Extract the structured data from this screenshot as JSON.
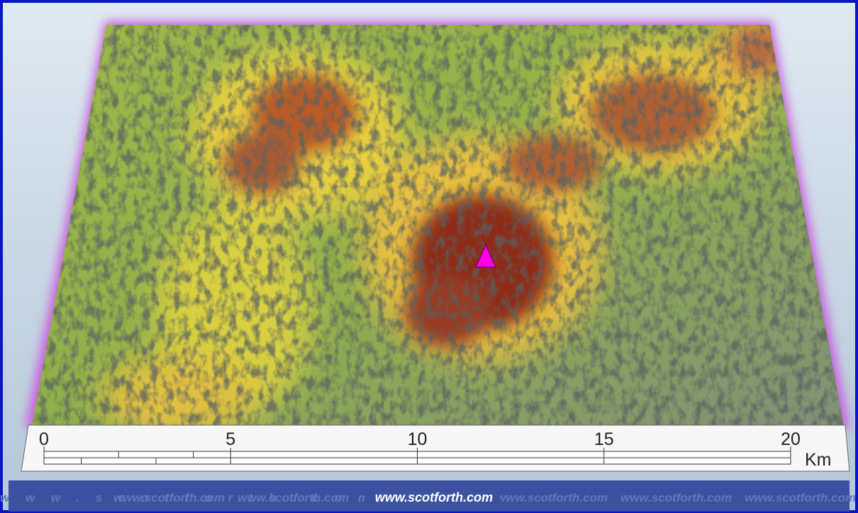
{
  "scale_bar": {
    "ticks": [
      0,
      5,
      10,
      15,
      20
    ],
    "unit": "Km"
  },
  "footer": {
    "watermark": "www.scotforth.com"
  }
}
